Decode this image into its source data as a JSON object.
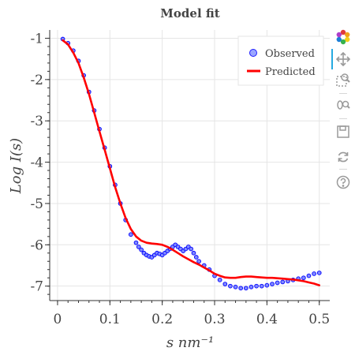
{
  "chart_data": {
    "type": "line",
    "title": "Model fit",
    "xlabel": "s nm⁻¹",
    "ylabel": "Log I(s)",
    "xlim": [
      -0.015,
      0.52
    ],
    "ylim": [
      -7.35,
      -0.8
    ],
    "xticks": [
      0,
      0.1,
      0.2,
      0.3,
      0.4,
      0.5
    ],
    "xtick_labels": [
      "0",
      "0.1",
      "0.2",
      "0.3",
      "0.4",
      "0.5"
    ],
    "yticks": [
      -1,
      -2,
      -3,
      -4,
      -5,
      -6,
      -7
    ],
    "ytick_labels": [
      "-1",
      "-2",
      "-3",
      "-4",
      "-5",
      "-6",
      "-7"
    ],
    "grid": true,
    "legend_position": "top-right",
    "series": [
      {
        "name": "Observed",
        "kind": "scatter",
        "color": "#0000ff",
        "x": [
          0.01,
          0.02,
          0.03,
          0.04,
          0.05,
          0.06,
          0.07,
          0.08,
          0.09,
          0.1,
          0.11,
          0.12,
          0.13,
          0.14,
          0.15,
          0.155,
          0.16,
          0.165,
          0.17,
          0.175,
          0.18,
          0.185,
          0.19,
          0.195,
          0.2,
          0.205,
          0.21,
          0.215,
          0.22,
          0.225,
          0.23,
          0.235,
          0.24,
          0.245,
          0.25,
          0.255,
          0.26,
          0.265,
          0.27,
          0.28,
          0.29,
          0.3,
          0.31,
          0.32,
          0.33,
          0.34,
          0.35,
          0.36,
          0.37,
          0.38,
          0.39,
          0.4,
          0.41,
          0.42,
          0.43,
          0.44,
          0.45,
          0.46,
          0.47,
          0.48,
          0.49,
          0.5
        ],
        "y": [
          -1.02,
          -1.12,
          -1.3,
          -1.55,
          -1.9,
          -2.3,
          -2.75,
          -3.2,
          -3.65,
          -4.1,
          -4.55,
          -5.0,
          -5.4,
          -5.75,
          -5.95,
          -6.05,
          -6.12,
          -6.2,
          -6.25,
          -6.28,
          -6.3,
          -6.25,
          -6.2,
          -6.22,
          -6.25,
          -6.2,
          -6.15,
          -6.1,
          -6.05,
          -6.0,
          -6.05,
          -6.1,
          -6.15,
          -6.1,
          -6.05,
          -6.1,
          -6.2,
          -6.3,
          -6.4,
          -6.5,
          -6.6,
          -6.75,
          -6.85,
          -6.95,
          -7.0,
          -7.02,
          -7.05,
          -7.05,
          -7.02,
          -7.0,
          -7.0,
          -6.98,
          -6.95,
          -6.92,
          -6.9,
          -6.88,
          -6.85,
          -6.82,
          -6.8,
          -6.75,
          -6.7,
          -6.68
        ]
      },
      {
        "name": "Predicted",
        "kind": "line",
        "color": "#ff0000",
        "x": [
          0.01,
          0.02,
          0.03,
          0.04,
          0.05,
          0.06,
          0.07,
          0.08,
          0.09,
          0.1,
          0.11,
          0.12,
          0.13,
          0.14,
          0.15,
          0.16,
          0.17,
          0.18,
          0.19,
          0.2,
          0.21,
          0.22,
          0.23,
          0.24,
          0.25,
          0.26,
          0.27,
          0.28,
          0.29,
          0.3,
          0.31,
          0.32,
          0.33,
          0.34,
          0.35,
          0.36,
          0.37,
          0.38,
          0.39,
          0.4,
          0.41,
          0.42,
          0.43,
          0.44,
          0.45,
          0.46,
          0.47,
          0.48,
          0.49,
          0.5
        ],
        "y": [
          -1.05,
          -1.15,
          -1.35,
          -1.6,
          -1.95,
          -2.35,
          -2.8,
          -3.25,
          -3.7,
          -4.15,
          -4.6,
          -5.0,
          -5.35,
          -5.62,
          -5.8,
          -5.9,
          -5.95,
          -5.97,
          -5.98,
          -6.0,
          -6.05,
          -6.12,
          -6.2,
          -6.28,
          -6.35,
          -6.42,
          -6.48,
          -6.55,
          -6.62,
          -6.7,
          -6.75,
          -6.79,
          -6.8,
          -6.8,
          -6.78,
          -6.77,
          -6.77,
          -6.78,
          -6.79,
          -6.8,
          -6.8,
          -6.81,
          -6.82,
          -6.83,
          -6.84,
          -6.86,
          -6.88,
          -6.91,
          -6.94,
          -6.98
        ]
      }
    ]
  },
  "toolbar": {
    "tools": [
      "bokeh-logo-icon",
      "pan-icon",
      "box-zoom-icon",
      "wheel-zoom-icon",
      "save-icon",
      "reset-icon",
      "help-icon"
    ]
  }
}
